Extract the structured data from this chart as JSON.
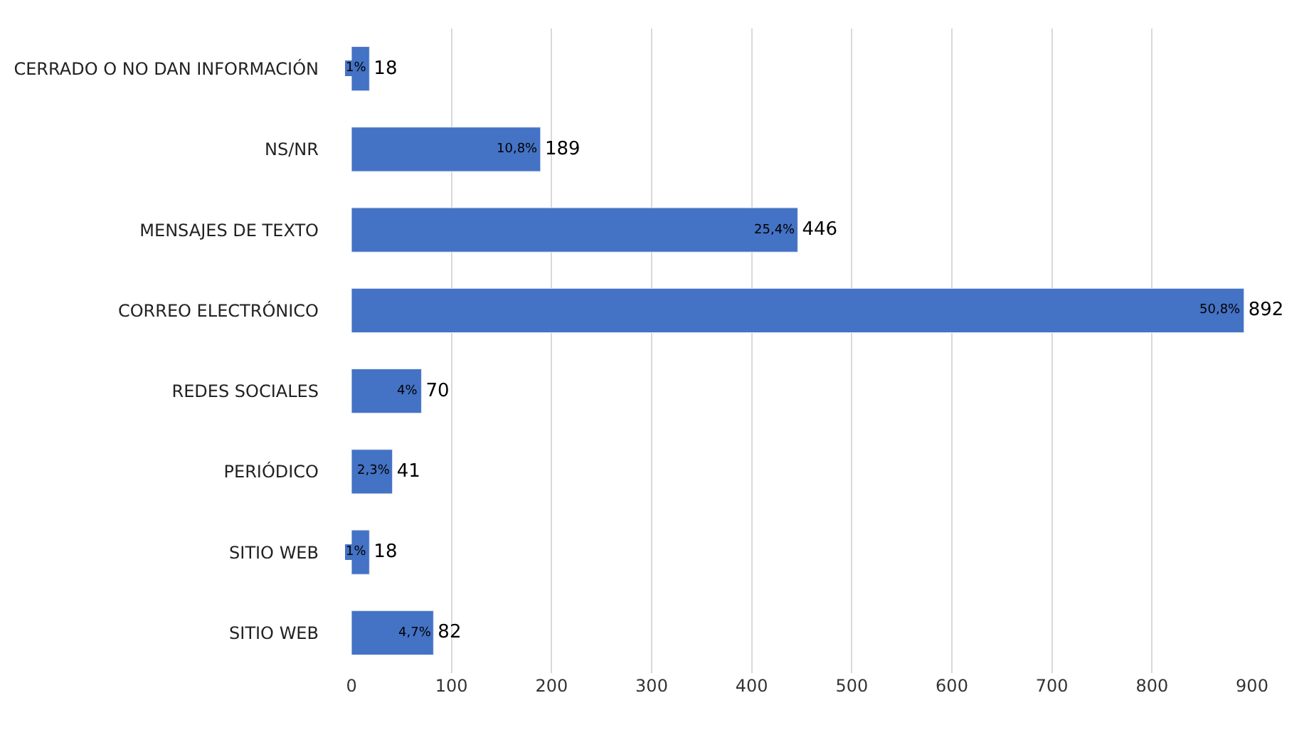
{
  "chart_data": {
    "type": "bar",
    "orientation": "horizontal",
    "categories": [
      "CERRADO O NO DAN INFORMACIÓN",
      "NS/NR",
      "MENSAJES DE TEXTO",
      "CORREO ELECTRÓNICO",
      "REDES SOCIALES",
      "PERIÓDICO",
      "SITIO WEB",
      "SITIO WEB"
    ],
    "values": [
      18,
      189,
      446,
      892,
      70,
      41,
      18,
      82
    ],
    "data_labels": true,
    "annotations": [
      "1%",
      "10,8%",
      "25,4%",
      "50,8%",
      "4%",
      "2,3%",
      "1%",
      "4,7%"
    ],
    "color": "#4472c4",
    "xlim": [
      0,
      900
    ],
    "xticks": [
      0,
      100,
      200,
      300,
      400,
      500,
      600,
      700,
      800,
      900
    ],
    "grid": "x",
    "legend": false
  }
}
